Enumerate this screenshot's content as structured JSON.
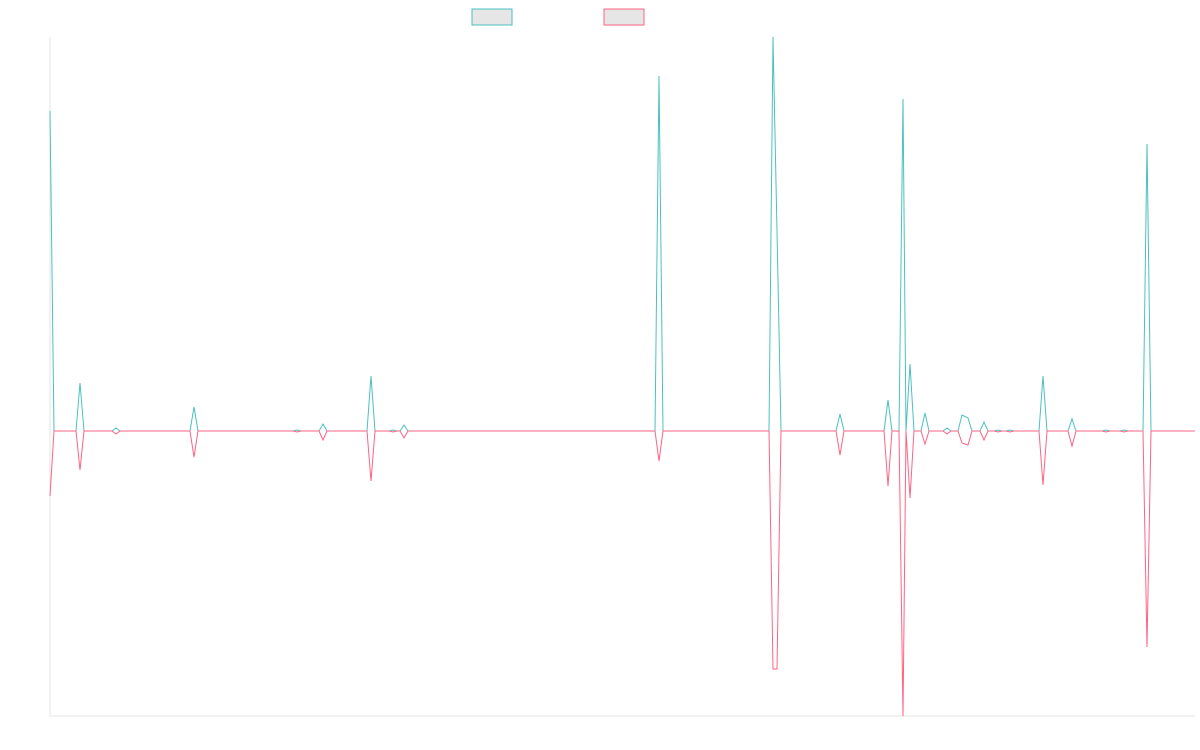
{
  "chart_data": {
    "type": "line",
    "x": [
      0,
      4,
      26,
      30,
      34,
      62,
      66,
      70,
      140,
      144,
      148,
      243,
      247,
      251,
      269,
      273,
      277,
      317,
      321,
      325,
      339,
      343,
      347,
      350,
      354,
      358,
      605,
      609,
      613,
      719,
      723,
      727,
      731,
      786,
      790,
      794,
      834,
      838,
      842,
      849,
      853,
      856,
      860,
      864,
      871,
      875,
      879,
      893,
      897,
      901,
      908,
      912,
      918,
      922,
      930,
      934,
      938,
      944,
      948,
      952,
      956,
      960,
      964,
      989,
      993,
      997,
      1018,
      1022,
      1026,
      1052,
      1056,
      1060,
      1070,
      1074,
      1078,
      1093,
      1097,
      1101,
      1145
    ],
    "series": [
      {
        "color": "#4bc0c0",
        "values": [
          320,
          0,
          0,
          48,
          0,
          0,
          3,
          0,
          0,
          24,
          0,
          0,
          1,
          0,
          0,
          7,
          0,
          0,
          55,
          0,
          0,
          1,
          0,
          0,
          6,
          0,
          0,
          355,
          0,
          0,
          394,
          200,
          0,
          0,
          17,
          0,
          0,
          31,
          0,
          0,
          332,
          0,
          67,
          0,
          0,
          18,
          0,
          0,
          3,
          0,
          0,
          16,
          13,
          0,
          0,
          9,
          0,
          0,
          1,
          0,
          0,
          1,
          0,
          0,
          55,
          0,
          0,
          12,
          0,
          0,
          1,
          0,
          0,
          1,
          0,
          0,
          287,
          0,
          0
        ]
      },
      {
        "color": "#ff6384",
        "values": [
          -65,
          0,
          0,
          -39,
          0,
          0,
          -3,
          0,
          0,
          -26,
          0,
          0,
          -1,
          0,
          0,
          -9,
          0,
          0,
          -50,
          0,
          0,
          -1,
          0,
          0,
          -7,
          0,
          0,
          -30,
          0,
          0,
          -238,
          -238,
          0,
          0,
          -24,
          0,
          0,
          -55,
          0,
          0,
          -285,
          0,
          -67,
          0,
          0,
          -13,
          0,
          0,
          -3,
          0,
          0,
          -12,
          -14,
          0,
          0,
          -9,
          0,
          0,
          -1,
          0,
          0,
          -1,
          0,
          0,
          -54,
          0,
          0,
          -15,
          0,
          0,
          -1,
          0,
          0,
          -1,
          0,
          0,
          -216,
          0,
          0
        ]
      }
    ],
    "xlim": [
      0,
      1145
    ],
    "ylim": [
      -285,
      394
    ]
  }
}
